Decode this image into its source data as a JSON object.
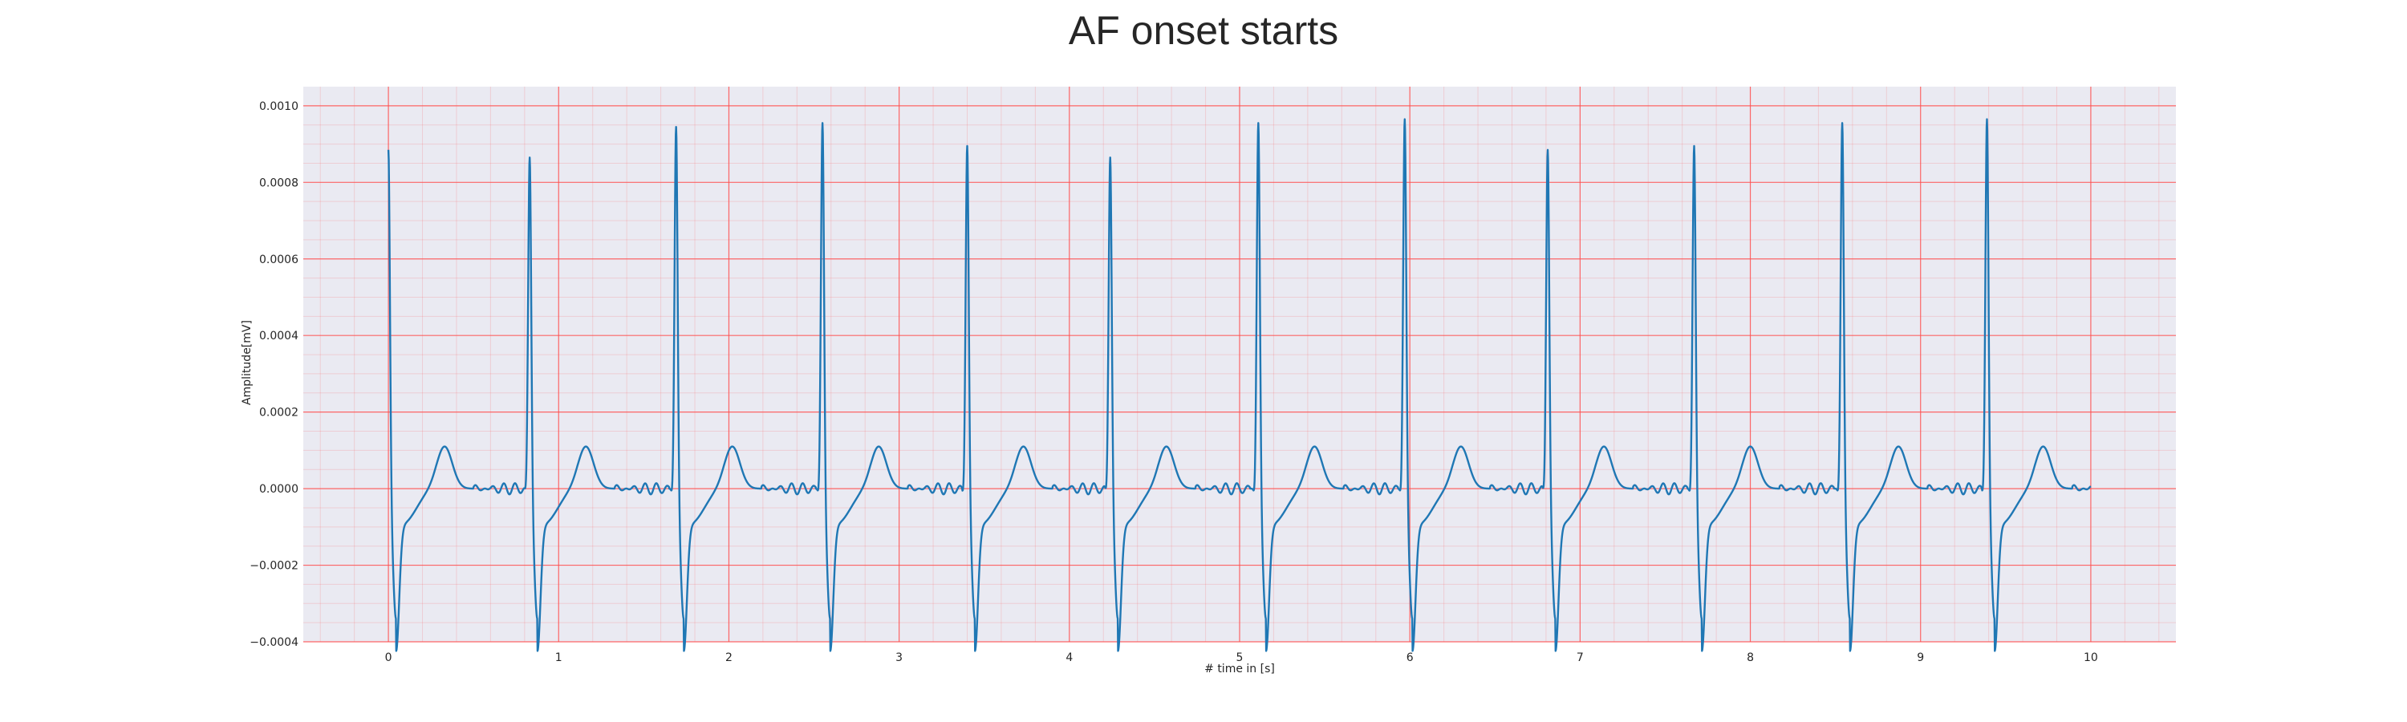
{
  "chart_data": {
    "type": "line",
    "title": "AF onset starts",
    "xlabel": "# time in [s]",
    "ylabel": "Amplitude[mV]",
    "xlim": [
      -0.5,
      10.5
    ],
    "ylim": [
      -0.0004,
      0.00105
    ],
    "x_ticks": [
      0,
      1,
      2,
      3,
      4,
      5,
      6,
      7,
      8,
      9,
      10
    ],
    "x_tick_labels": [
      "0",
      "1",
      "2",
      "3",
      "4",
      "5",
      "6",
      "7",
      "8",
      "9",
      "10"
    ],
    "y_ticks": [
      -0.0004,
      -0.0002,
      0,
      0.0002,
      0.0004,
      0.0006,
      0.0008,
      0.001
    ],
    "y_tick_labels": [
      "−0.0004",
      "−0.0002",
      "0.0000",
      "0.0002",
      "0.0004",
      "0.0006",
      "0.0008",
      "0.0010"
    ],
    "grid": true,
    "background_color": "#eaeaf2",
    "grid_color": "#ff4d4d",
    "series": [
      {
        "color": "#1f77b4",
        "beats": [
          {
            "t": 0.0,
            "peak": 0.0009
          },
          {
            "t": 0.83,
            "peak": 0.00088
          },
          {
            "t": 1.69,
            "peak": 0.00096
          },
          {
            "t": 2.55,
            "peak": 0.00097
          },
          {
            "t": 3.4,
            "peak": 0.00091
          },
          {
            "t": 4.24,
            "peak": 0.00088
          },
          {
            "t": 5.11,
            "peak": 0.00097
          },
          {
            "t": 5.97,
            "peak": 0.00098
          },
          {
            "t": 6.81,
            "peak": 0.0009
          },
          {
            "t": 7.67,
            "peak": 0.00091
          },
          {
            "t": 8.54,
            "peak": 0.00097
          },
          {
            "t": 9.39,
            "peak": 0.00098
          }
        ],
        "x_end": 10.0,
        "trough": -0.00034,
        "t_wave_peak": 0.00011
      }
    ]
  }
}
